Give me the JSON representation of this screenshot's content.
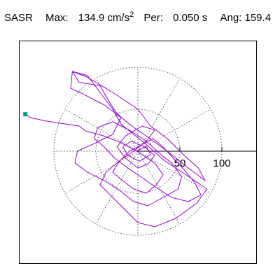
{
  "header": {
    "station": "SASR",
    "max_label": "Max:",
    "max_value": "134.9 cm/s",
    "max_exp": "2",
    "per_label": "Per:",
    "per_value": "0.050 s",
    "ang_label": "Ang:",
    "ang_value": "159.4"
  },
  "chart_data": {
    "type": "line",
    "subtype": "polar-particle-motion",
    "units": "cm/s2",
    "max_amplitude": 134.9,
    "period_s": 0.05,
    "angle_deg": 159.4,
    "radial_ticks": [
      50,
      100
    ],
    "radial_tick_labels": [
      "50",
      "100"
    ],
    "ring_radii": [
      50,
      100
    ],
    "spokes_every_deg": 30,
    "grid": true,
    "axis_extent": [
      -140,
      140
    ],
    "trace_color": "#9900cc",
    "marker_color": "#009980",
    "marker": {
      "x": -134,
      "y": 44
    },
    "x": [
      -134,
      -128,
      -110,
      -90,
      -70,
      -62,
      -40,
      -20,
      -5,
      8,
      20,
      30,
      22,
      10,
      -5,
      -18,
      -30,
      -22,
      -10,
      5,
      18,
      30,
      42,
      55,
      68,
      75,
      60,
      40,
      20,
      0,
      -15,
      -28,
      -40,
      -52,
      -48,
      -30,
      -10,
      10,
      25,
      40,
      52,
      48,
      30,
      12,
      -5,
      -20,
      -40,
      -60,
      -75,
      -72,
      -50,
      -30,
      -20,
      -40,
      -65,
      -80,
      -78,
      -60,
      -30,
      0,
      15,
      35,
      55,
      72,
      80,
      60,
      35,
      10,
      -10,
      -25,
      -35,
      -45,
      -70,
      -78,
      -60,
      -45,
      -30,
      -20,
      -5,
      10,
      30,
      60,
      82,
      70,
      45,
      20,
      0,
      -15,
      -30,
      -45,
      -38,
      -20,
      -5,
      10,
      20,
      5,
      -15,
      -25,
      -15,
      0,
      12,
      20,
      8,
      -8,
      -18,
      -12,
      2,
      15,
      10,
      -2
    ],
    "y": [
      44,
      40,
      36,
      33,
      30,
      24,
      18,
      10,
      2,
      -6,
      -14,
      -28,
      -40,
      -50,
      -45,
      -35,
      -25,
      -12,
      0,
      8,
      15,
      5,
      -8,
      -22,
      -38,
      -52,
      -60,
      -55,
      -42,
      -28,
      -18,
      -8,
      5,
      15,
      28,
      35,
      25,
      12,
      -2,
      -14,
      -30,
      -45,
      -55,
      -65,
      -60,
      -48,
      -35,
      -25,
      -14,
      0,
      10,
      20,
      40,
      55,
      68,
      75,
      95,
      88,
      70,
      50,
      30,
      15,
      -5,
      -20,
      -35,
      -20,
      0,
      18,
      32,
      45,
      60,
      78,
      82,
      95,
      90,
      70,
      50,
      32,
      20,
      8,
      -10,
      -30,
      -45,
      -62,
      -80,
      -90,
      -85,
      -70,
      -55,
      -40,
      -25,
      -10,
      0,
      12,
      25,
      30,
      18,
      5,
      -8,
      -20,
      -15,
      -5,
      5,
      12,
      5,
      -5,
      -12,
      -4,
      6,
      0
    ]
  }
}
